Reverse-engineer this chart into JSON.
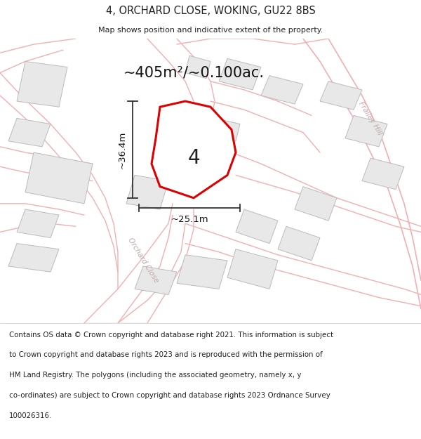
{
  "title": "4, ORCHARD CLOSE, WOKING, GU22 8BS",
  "subtitle": "Map shows position and indicative extent of the property.",
  "area_text": "~405m²/~0.100ac.",
  "width_label": "~25.1m",
  "height_label": "~36.4m",
  "property_number": "4",
  "map_bg_color": "#ffffff",
  "road_line_color": "#f0b0b0",
  "road_fill_color": "#ffffff",
  "building_facecolor": "#e8e8e8",
  "building_edgecolor": "#bbbbbb",
  "highlight_color": "#dd0000",
  "text_color": "#222222",
  "road_label_color": "#c0a8a8",
  "dim_line_color": "#333333",
  "frailey_hill_label": "Frailey Hill",
  "orchard_close_label": "Orchard Close",
  "footer_lines": [
    "Contains OS data © Crown copyright and database right 2021. This information is subject",
    "to Crown copyright and database rights 2023 and is reproduced with the permission of",
    "HM Land Registry. The polygons (including the associated geometry, namely x, y",
    "co-ordinates) are subject to Crown copyright and database rights 2023 Ordnance Survey",
    "100026316."
  ]
}
